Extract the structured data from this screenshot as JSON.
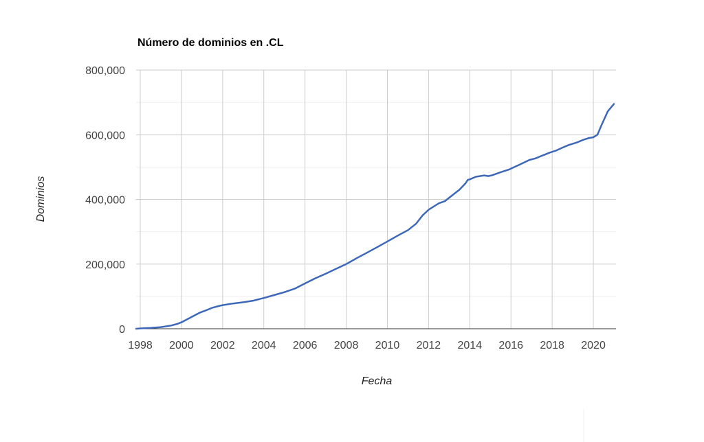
{
  "chart_data": {
    "type": "line",
    "title": "Número de dominios en .CL",
    "xlabel": "Fecha",
    "ylabel": "Dominios",
    "xlim": [
      1997.8,
      2021.1
    ],
    "ylim": [
      0,
      800000
    ],
    "x_ticks": [
      1998,
      2000,
      2002,
      2004,
      2006,
      2008,
      2010,
      2012,
      2014,
      2016,
      2018,
      2020
    ],
    "x_tick_labels": [
      "1998",
      "2000",
      "2002",
      "2004",
      "2006",
      "2008",
      "2010",
      "2012",
      "2014",
      "2016",
      "2018",
      "2020"
    ],
    "y_ticks": [
      0,
      200000,
      400000,
      600000,
      800000
    ],
    "y_tick_labels": [
      "0",
      "200,000",
      "400,000",
      "600,000",
      "800,000"
    ],
    "grid": true,
    "legend": "none",
    "color": "#3d67b8",
    "series": [
      {
        "x": [
          1997.8,
          1998.0,
          1998.5,
          1999.0,
          1999.5,
          1999.8,
          2000.0,
          2000.3,
          2000.6,
          2000.9,
          2001.2,
          2001.5,
          2001.8,
          2002.0,
          2002.5,
          2003.0,
          2003.5,
          2004.0,
          2004.5,
          2005.0,
          2005.5,
          2006.0,
          2006.5,
          2007.0,
          2007.5,
          2008.0,
          2008.5,
          2009.0,
          2009.5,
          2010.0,
          2010.5,
          2011.0,
          2011.4,
          2011.7,
          2012.0,
          2012.5,
          2012.8,
          2013.0,
          2013.5,
          2013.8,
          2013.9,
          2014.0,
          2014.3,
          2014.7,
          2014.9,
          2015.1,
          2015.5,
          2015.9,
          2016.1,
          2016.5,
          2016.9,
          2017.2,
          2017.5,
          2017.9,
          2018.2,
          2018.5,
          2018.8,
          2019.2,
          2019.5,
          2019.8,
          2020.0,
          2020.2,
          2020.4,
          2020.7,
          2021.0
        ],
        "values": [
          0,
          1000,
          2500,
          5000,
          10000,
          15000,
          20000,
          30000,
          40000,
          50000,
          57000,
          65000,
          70000,
          73000,
          78000,
          82000,
          87000,
          95000,
          104000,
          113000,
          124000,
          140000,
          156000,
          170000,
          185000,
          200000,
          218000,
          235000,
          252000,
          270000,
          288000,
          305000,
          325000,
          350000,
          368000,
          388000,
          395000,
          405000,
          430000,
          450000,
          460000,
          462000,
          470000,
          474000,
          472000,
          475000,
          484000,
          492000,
          498000,
          510000,
          522000,
          527000,
          535000,
          545000,
          551000,
          560000,
          568000,
          576000,
          584000,
          590000,
          592000,
          600000,
          630000,
          672000,
          695000
        ]
      }
    ]
  }
}
